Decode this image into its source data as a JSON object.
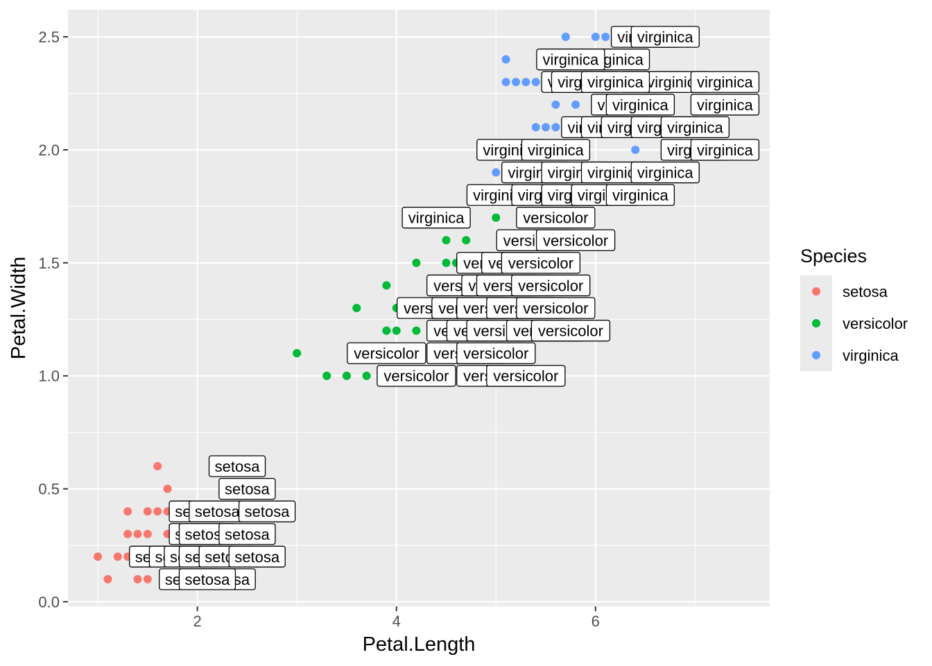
{
  "chart_data": {
    "type": "scatter",
    "xlabel": "Petal.Length",
    "ylabel": "Petal.Width",
    "xlim": [
      0.7,
      7.75
    ],
    "ylim": [
      -0.02,
      2.62
    ],
    "x_ticks": [
      2,
      4,
      6
    ],
    "y_ticks": [
      0.0,
      0.5,
      1.0,
      1.5,
      2.0,
      2.5
    ],
    "x_tick_labels": [
      "2",
      "4",
      "6"
    ],
    "y_tick_labels": [
      "0.0",
      "0.5",
      "1.0",
      "1.5",
      "2.0",
      "2.5"
    ],
    "grid": true,
    "legend": {
      "title": "Species",
      "placement": "right",
      "entries": [
        "setosa",
        "versicolor",
        "virginica"
      ]
    },
    "colors": {
      "setosa": "#F8766D",
      "versicolor": "#00BA38",
      "virginica": "#619CFF",
      "panel": "#EBEBEB",
      "grid": "#FFFFFF"
    },
    "label_style": "boxed-text-labels",
    "series": [
      {
        "name": "setosa",
        "points": [
          [
            1.6,
            0.6
          ],
          [
            1.7,
            0.5
          ],
          [
            1.3,
            0.4
          ],
          [
            1.5,
            0.4
          ],
          [
            1.6,
            0.4
          ],
          [
            1.7,
            0.4
          ],
          [
            1.3,
            0.3
          ],
          [
            1.4,
            0.3
          ],
          [
            1.5,
            0.3
          ],
          [
            1.7,
            0.3
          ],
          [
            1.0,
            0.2
          ],
          [
            1.2,
            0.2
          ],
          [
            1.3,
            0.2
          ],
          [
            1.4,
            0.2
          ],
          [
            1.5,
            0.2
          ],
          [
            1.1,
            0.1
          ],
          [
            1.4,
            0.1
          ],
          [
            1.5,
            0.1
          ]
        ],
        "labels": [
          [
            2.4,
            0.6
          ],
          [
            2.5,
            0.5
          ],
          [
            2.0,
            0.4
          ],
          [
            2.2,
            0.4
          ],
          [
            2.7,
            0.4
          ],
          [
            2.0,
            0.3
          ],
          [
            2.1,
            0.3
          ],
          [
            2.5,
            0.3
          ],
          [
            1.6,
            0.2
          ],
          [
            1.8,
            0.2
          ],
          [
            1.95,
            0.2
          ],
          [
            2.1,
            0.2
          ],
          [
            2.3,
            0.2
          ],
          [
            2.6,
            0.2
          ],
          [
            1.9,
            0.1
          ],
          [
            2.3,
            0.1
          ],
          [
            2.1,
            0.1
          ]
        ]
      },
      {
        "name": "versicolor",
        "points": [
          [
            3.0,
            1.1
          ],
          [
            3.3,
            1.0
          ],
          [
            3.5,
            1.0
          ],
          [
            3.7,
            1.0
          ],
          [
            3.6,
            1.3
          ],
          [
            3.9,
            1.4
          ],
          [
            3.9,
            1.2
          ],
          [
            4.0,
            1.2
          ],
          [
            4.2,
            1.2
          ],
          [
            4.4,
            1.2
          ],
          [
            4.0,
            1.3
          ],
          [
            4.1,
            1.3
          ],
          [
            4.2,
            1.5
          ],
          [
            4.4,
            1.4
          ],
          [
            4.5,
            1.5
          ],
          [
            4.6,
            1.5
          ],
          [
            4.7,
            1.5
          ],
          [
            4.5,
            1.6
          ],
          [
            4.7,
            1.6
          ],
          [
            5.0,
            1.7
          ]
        ],
        "labels": [
          [
            3.9,
            1.1
          ],
          [
            4.7,
            1.1
          ],
          [
            5.0,
            1.1
          ],
          [
            4.2,
            1.0
          ],
          [
            5.0,
            1.0
          ],
          [
            5.3,
            1.0
          ],
          [
            4.7,
            1.2
          ],
          [
            4.9,
            1.2
          ],
          [
            5.1,
            1.2
          ],
          [
            5.5,
            1.2
          ],
          [
            5.75,
            1.2
          ],
          [
            4.4,
            1.3
          ],
          [
            4.75,
            1.3
          ],
          [
            5.0,
            1.3
          ],
          [
            5.3,
            1.3
          ],
          [
            5.6,
            1.3
          ],
          [
            4.7,
            1.4
          ],
          [
            5.05,
            1.4
          ],
          [
            5.2,
            1.4
          ],
          [
            5.55,
            1.4
          ],
          [
            5.0,
            1.5
          ],
          [
            5.25,
            1.5
          ],
          [
            5.45,
            1.5
          ],
          [
            5.4,
            1.6
          ],
          [
            5.8,
            1.6
          ],
          [
            5.6,
            1.7
          ]
        ]
      },
      {
        "name": "virginica",
        "points": [
          [
            4.5,
            1.7
          ],
          [
            4.8,
            1.8
          ],
          [
            4.9,
            1.8
          ],
          [
            5.1,
            1.8
          ],
          [
            5.0,
            1.9
          ],
          [
            5.1,
            1.9
          ],
          [
            5.3,
            1.9
          ],
          [
            4.9,
            2.0
          ],
          [
            5.0,
            2.0
          ],
          [
            5.1,
            2.0
          ],
          [
            5.2,
            2.0
          ],
          [
            6.4,
            2.0
          ],
          [
            6.7,
            2.0
          ],
          [
            5.4,
            2.1
          ],
          [
            5.5,
            2.1
          ],
          [
            5.6,
            2.1
          ],
          [
            5.7,
            2.1
          ],
          [
            5.9,
            2.1
          ],
          [
            5.6,
            2.2
          ],
          [
            5.8,
            2.2
          ],
          [
            5.1,
            2.3
          ],
          [
            5.2,
            2.3
          ],
          [
            5.3,
            2.3
          ],
          [
            5.4,
            2.3
          ],
          [
            5.6,
            2.3
          ],
          [
            5.1,
            2.4
          ],
          [
            5.6,
            2.4
          ],
          [
            5.7,
            2.5
          ],
          [
            6.0,
            2.5
          ],
          [
            6.1,
            2.5
          ]
        ],
        "labels": [
          [
            4.4,
            1.7
          ],
          [
            5.05,
            1.8
          ],
          [
            5.5,
            1.8
          ],
          [
            5.8,
            1.8
          ],
          [
            6.1,
            1.8
          ],
          [
            6.45,
            1.8
          ],
          [
            5.4,
            1.9
          ],
          [
            5.8,
            1.9
          ],
          [
            6.2,
            1.9
          ],
          [
            6.7,
            1.9
          ],
          [
            5.15,
            2.0
          ],
          [
            5.6,
            2.0
          ],
          [
            7.0,
            2.0
          ],
          [
            7.3,
            2.0
          ],
          [
            6.0,
            2.1
          ],
          [
            6.2,
            2.1
          ],
          [
            6.4,
            2.1
          ],
          [
            6.7,
            2.1
          ],
          [
            7.0,
            2.1
          ],
          [
            6.3,
            2.2
          ],
          [
            6.45,
            2.2
          ],
          [
            7.3,
            2.2
          ],
          [
            5.8,
            2.3
          ],
          [
            5.9,
            2.3
          ],
          [
            6.6,
            2.3
          ],
          [
            6.8,
            2.3
          ],
          [
            7.3,
            2.3
          ],
          [
            6.2,
            2.3
          ],
          [
            6.2,
            2.4
          ],
          [
            5.75,
            2.4
          ],
          [
            6.5,
            2.5
          ],
          [
            6.7,
            2.5
          ]
        ]
      }
    ]
  }
}
